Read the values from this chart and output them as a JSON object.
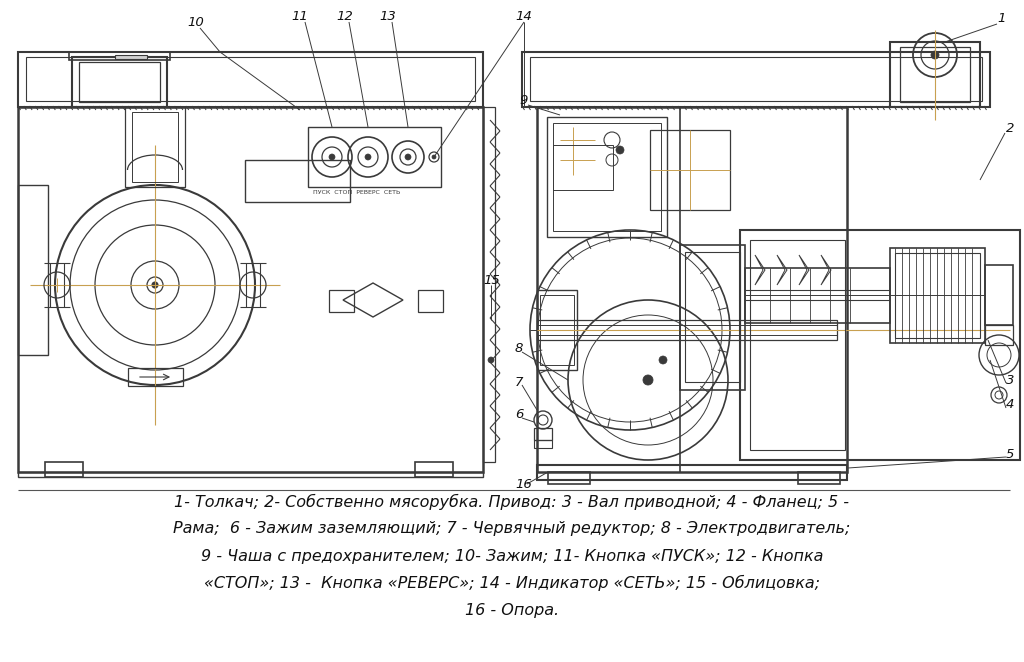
{
  "bg_color": "#ffffff",
  "line_color": "#3a3a3a",
  "golden_color": "#c8a050",
  "fig_width": 10.24,
  "fig_height": 6.62,
  "caption_line1": "1- Толкач; 2- Собственно мясорубка. Привод: 3 - Вал приводной; 4 - Фланец; 5 -",
  "caption_line2": "Рама;  6 - Зажим заземляющий; 7 - Червячный редуктор; 8 - Электродвигатель;",
  "caption_line3": "9 - Чаша с предохранителем; 10- Зажим; 11- Кнопка «ПУСК»; 12 - Кнопка",
  "caption_line4": "«СТОП»; 13 -  Кнопка «РЕВЕРС»; 14 - Индикатор «СЕТЬ»; 15 - Облицовка;",
  "caption_line5": "16 - Опора.",
  "caption_fontsize": 11.5
}
